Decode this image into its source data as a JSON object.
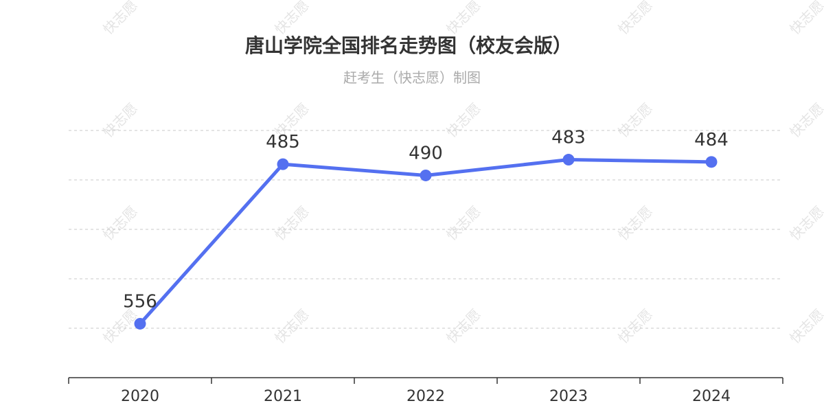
{
  "watermark": "快志愿",
  "chart_data": {
    "type": "line",
    "title": "唐山学院全国排名走势图（校友会版）",
    "subtitle": "赶考生（快志愿）制图",
    "categories": [
      "2020",
      "2021",
      "2022",
      "2023",
      "2024"
    ],
    "series": [
      {
        "values": [
          556,
          485,
          490,
          483,
          484
        ],
        "color": "#5470f0"
      }
    ],
    "y_inverted": true,
    "ylim": [
      470,
      580
    ],
    "xlabel": "",
    "ylabel": "",
    "grid": true,
    "y_tick_labels_visible": false
  }
}
